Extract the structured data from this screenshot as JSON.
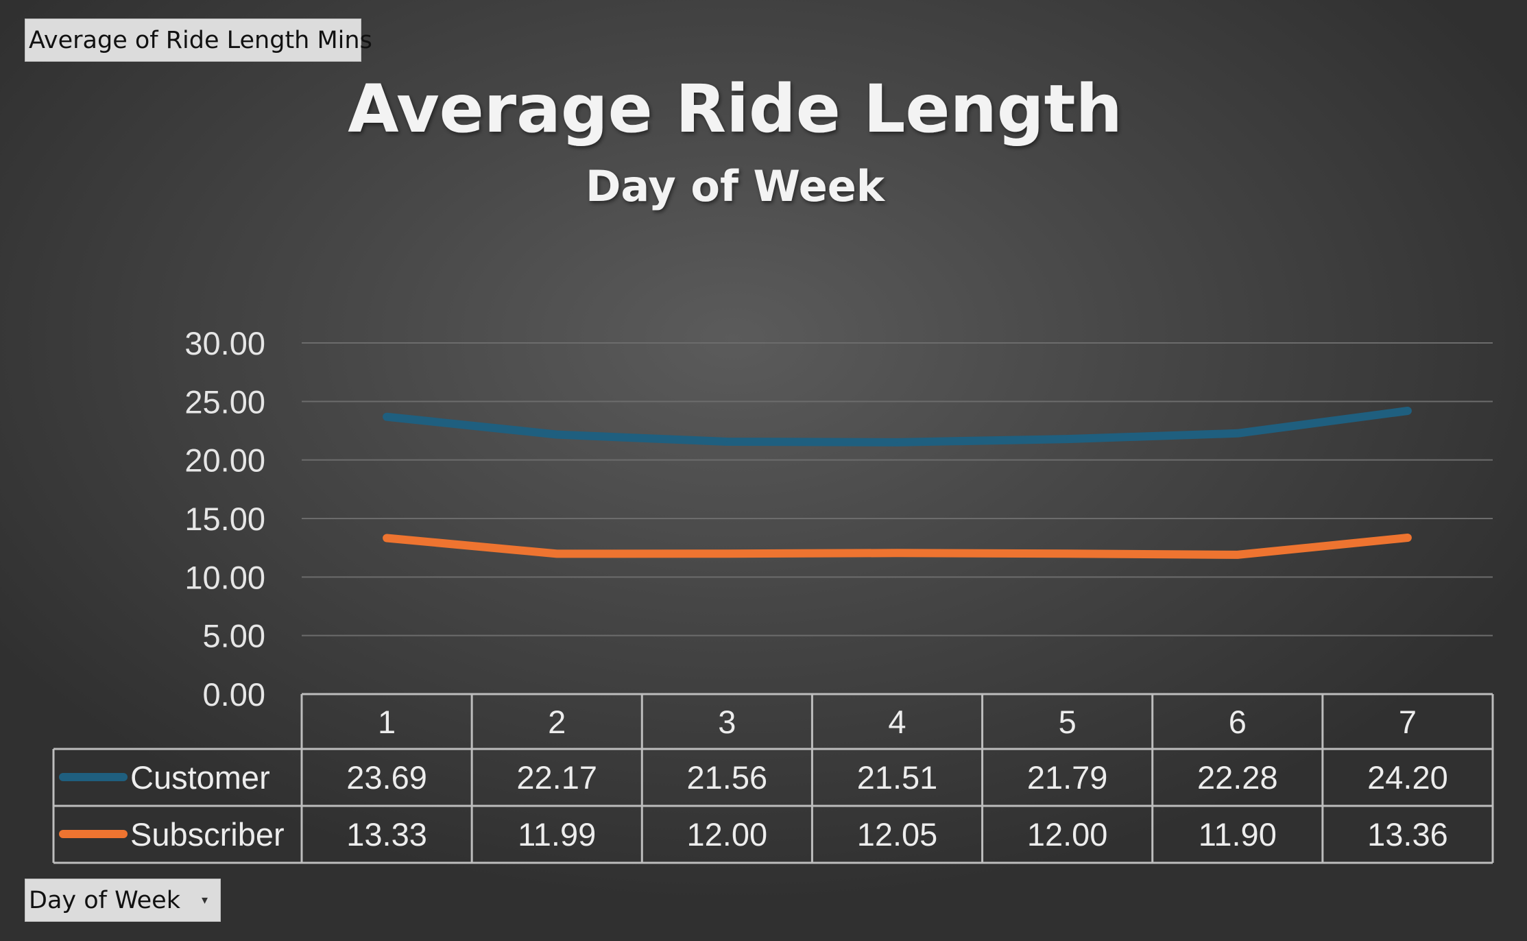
{
  "pivot": {
    "value_field_label": "Average of Ride Length Mins",
    "axis_field_label": "Day of Week",
    "dropdown_glyph": "▾"
  },
  "chart_data": {
    "type": "line",
    "title": "Average Ride Length",
    "subtitle": "Day of Week",
    "categories": [
      "1",
      "2",
      "3",
      "4",
      "5",
      "6",
      "7"
    ],
    "series": [
      {
        "name": "Customer",
        "color": "#1f5f7f",
        "values": [
          23.69,
          22.17,
          21.56,
          21.51,
          21.79,
          22.28,
          24.2
        ]
      },
      {
        "name": "Subscriber",
        "color": "#ee7430",
        "values": [
          13.33,
          11.99,
          12.0,
          12.05,
          12.0,
          11.9,
          13.36
        ]
      }
    ],
    "yticks": [
      "0.00",
      "5.00",
      "10.00",
      "15.00",
      "20.00",
      "25.00",
      "30.00"
    ],
    "ylim": [
      0,
      30
    ],
    "grid": true,
    "data_table": true,
    "data_labels": [
      [
        "23.69",
        "22.17",
        "21.56",
        "21.51",
        "21.79",
        "22.28",
        "24.20"
      ],
      [
        "13.33",
        "11.99",
        "12.00",
        "12.05",
        "12.00",
        "11.90",
        "13.36"
      ]
    ]
  }
}
